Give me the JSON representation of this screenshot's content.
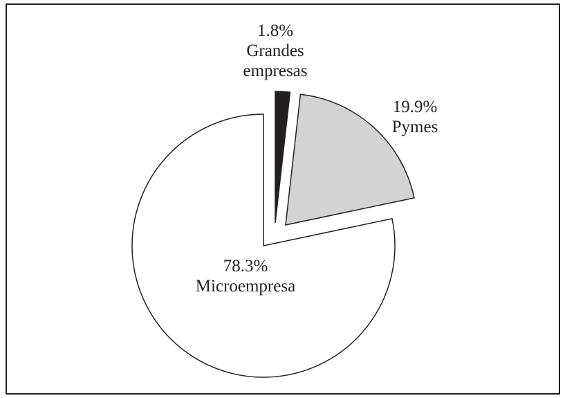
{
  "chart_data": {
    "type": "pie",
    "categories": [
      "Grandes empresas",
      "Pymes",
      "Microempresa"
    ],
    "values": [
      1.8,
      19.9,
      78.3
    ],
    "value_labels": [
      "1.8%",
      "19.9%",
      "78.3%"
    ],
    "colors": [
      "#231f20",
      "#d3d3d3",
      "#ffffff"
    ]
  }
}
